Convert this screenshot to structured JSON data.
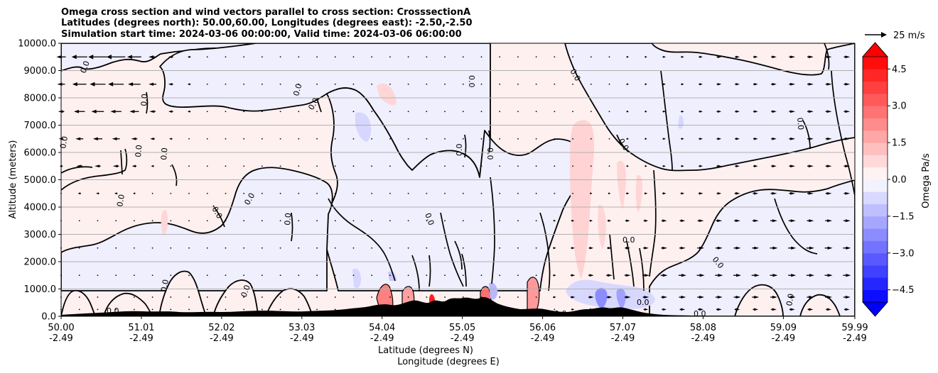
{
  "chart_data": {
    "type": "contourf",
    "title_lines": [
      "Omega cross section and wind vectors parallel to cross section: CrosssectionA",
      "Latitudes (degrees north): 50.00,60.00, Longitudes (degrees east): -2.50,-2.50",
      "Simulation start time: 2024-03-06 00:00:00, Valid time: 2024-03-06 06:00:00"
    ],
    "xlabel_line1": "Latitude (degrees N)",
    "xlabel_line2": "Longitude (degrees E)",
    "ylabel": "Altitude (meters)",
    "xlim": [
      50.0,
      59.99
    ],
    "ylim": [
      0,
      10000
    ],
    "x_ticks": [
      {
        "lat": "50.00",
        "lon": "-2.49",
        "value": 50.0
      },
      {
        "lat": "51.01",
        "lon": "-2.49",
        "value": 51.01
      },
      {
        "lat": "52.02",
        "lon": "-2.49",
        "value": 52.02
      },
      {
        "lat": "53.03",
        "lon": "-2.49",
        "value": 53.03
      },
      {
        "lat": "54.04",
        "lon": "-2.49",
        "value": 54.04
      },
      {
        "lat": "55.05",
        "lon": "-2.49",
        "value": 55.05
      },
      {
        "lat": "56.06",
        "lon": "-2.49",
        "value": 56.06
      },
      {
        "lat": "57.07",
        "lon": "-2.49",
        "value": 57.07
      },
      {
        "lat": "58.08",
        "lon": "-2.49",
        "value": 58.08
      },
      {
        "lat": "59.09",
        "lon": "-2.49",
        "value": 59.09
      },
      {
        "lat": "59.99",
        "lon": "-2.49",
        "value": 59.99
      }
    ],
    "y_ticks": [
      {
        "label": "0.0",
        "value": 0
      },
      {
        "label": "1000.0",
        "value": 1000
      },
      {
        "label": "2000.0",
        "value": 2000
      },
      {
        "label": "3000.0",
        "value": 3000
      },
      {
        "label": "4000.0",
        "value": 4000
      },
      {
        "label": "5000.0",
        "value": 5000
      },
      {
        "label": "6000.0",
        "value": 6000
      },
      {
        "label": "7000.0",
        "value": 7000
      },
      {
        "label": "8000.0",
        "value": 8000
      },
      {
        "label": "9000.0",
        "value": 9000
      },
      {
        "label": "10000.0",
        "value": 10000
      }
    ],
    "grid": "horizontal",
    "colorbar": {
      "label": "Omega Pa/s",
      "min": -5.0,
      "max": 5.0,
      "levels": 20,
      "ticks": [
        {
          "label": "4.5",
          "value": 4.5
        },
        {
          "label": "3.0",
          "value": 3.0
        },
        {
          "label": "1.5",
          "value": 1.5
        },
        {
          "label": "0.0",
          "value": 0.0
        },
        {
          "label": "−1.5",
          "value": -1.5
        },
        {
          "label": "−3.0",
          "value": -3.0
        },
        {
          "label": "−4.5",
          "value": -4.5
        }
      ],
      "colormap": "bwr",
      "extend": "both"
    },
    "quiver_key": {
      "label": "25 m/s",
      "speed": 25
    },
    "contour_level_label": "0.0",
    "wind_vectors": {
      "x_columns": [
        50.0,
        50.23,
        50.46,
        50.69,
        50.92,
        51.15,
        51.38,
        51.61,
        51.84,
        52.07,
        52.3,
        52.53,
        52.76,
        52.99,
        53.22,
        53.45,
        53.68,
        53.91,
        54.14,
        54.37,
        54.6,
        54.83,
        55.06,
        55.29,
        55.52,
        55.75,
        55.98,
        56.21,
        56.44,
        56.67,
        56.9,
        57.13,
        57.36,
        57.59,
        57.82,
        58.05,
        58.28,
        58.51,
        58.74,
        58.97,
        59.2,
        59.43,
        59.66,
        59.89
      ],
      "levels": [
        {
          "altitude": 9500,
          "u": [
            -6,
            -10,
            -12,
            -12,
            -9,
            -5,
            -3,
            -2,
            -1,
            -1,
            -1,
            -0.5,
            -0.5,
            -0.5,
            -0.5,
            -0.5,
            -0.5,
            -0.5,
            -0.5,
            -0.5,
            -0.5,
            -0.5,
            -0.5,
            -0.5,
            -0.5,
            -0.5,
            0.5,
            1,
            1,
            1,
            1,
            1.5,
            1.5,
            2,
            2,
            2.5,
            3,
            3,
            3,
            3.5,
            4,
            4,
            4,
            4
          ]
        },
        {
          "altitude": 8500,
          "u": [
            -5,
            -9,
            -10,
            -10,
            -8,
            -5,
            -3,
            -2,
            -1,
            -1,
            -1,
            -0.5,
            -0.5,
            -0.5,
            -0.5,
            -0.5,
            -0.5,
            -0.5,
            -0.5,
            -0.5,
            -0.5,
            -0.5,
            -0.5,
            -0.5,
            -0.5,
            -0.5,
            0.5,
            1,
            1,
            1,
            1,
            1.5,
            1.5,
            2,
            2,
            2.5,
            3,
            3,
            3,
            3.5,
            4,
            4,
            4,
            4
          ]
        },
        {
          "altitude": 7500,
          "u": [
            -4,
            -7,
            -8,
            -7,
            -6,
            -4,
            -3,
            -2,
            -1,
            -1,
            -1,
            -0.5,
            -0.5,
            -0.5,
            -0.5,
            -0.5,
            -0.5,
            -0.5,
            -0.5,
            -0.5,
            -0.5,
            -0.5,
            -0.5,
            -0.5,
            -0.5,
            -0.5,
            0.5,
            1,
            1,
            1,
            1,
            1.5,
            1.5,
            2,
            2,
            2.5,
            3,
            3,
            3,
            3.5,
            4,
            4,
            4,
            4
          ]
        },
        {
          "altitude": 6500,
          "u": [
            -3,
            -5,
            -6,
            -5,
            -4,
            -3,
            -2,
            -1,
            -1,
            -1,
            -1,
            -0.5,
            -0.5,
            -0.5,
            -0.5,
            -0.5,
            -0.5,
            -0.5,
            -0.5,
            -0.5,
            -0.5,
            -0.5,
            -0.5,
            -0.5,
            -0.5,
            -0.5,
            0.5,
            1,
            1,
            1,
            1,
            1.5,
            1.5,
            2,
            2,
            2.5,
            3,
            3,
            3,
            3.5,
            4,
            4,
            4,
            4
          ]
        },
        {
          "altitude": 5500,
          "u": [
            -2,
            -4,
            -4,
            -4,
            -3,
            -2,
            -1,
            -1,
            -1,
            -0.5,
            -0.5,
            -0.5,
            -0.5,
            -0.5,
            -0.5,
            -0.5,
            -0.5,
            -0.5,
            -0.5,
            -0.5,
            -0.5,
            -0.5,
            -0.5,
            -0.5,
            -0.5,
            -0.5,
            0.5,
            1,
            1,
            1,
            1,
            1.5,
            1.5,
            2,
            2,
            2.5,
            3,
            3,
            3,
            3.5,
            4,
            4,
            4,
            4
          ]
        },
        {
          "altitude": 4500,
          "u": [
            -1,
            -2,
            -2,
            -2,
            -1.5,
            -1,
            -0.5,
            -0.5,
            -0.5,
            -0.5,
            -0.5,
            -0.5,
            -0.5,
            -0.5,
            -0.5,
            -0.5,
            -0.5,
            -0.5,
            -0.5,
            -0.5,
            -0.5,
            -0.5,
            -0.5,
            -0.5,
            -0.5,
            -0.5,
            0.5,
            1,
            1,
            1.5,
            1.5,
            2,
            2,
            2.5,
            2.5,
            3,
            3,
            3.5,
            3.5,
            4,
            4,
            4,
            4,
            4
          ]
        },
        {
          "altitude": 3500,
          "u": [
            -0.5,
            -1,
            -1,
            -1,
            -0.5,
            -0.5,
            -0.5,
            -0.5,
            -0.5,
            -0.5,
            -0.5,
            -0.5,
            -0.5,
            -0.5,
            -0.5,
            -0.5,
            -0.5,
            -0.5,
            -0.5,
            -0.5,
            -0.5,
            -0.5,
            -0.5,
            -0.5,
            -0.5,
            -0.5,
            1,
            1.5,
            2,
            2,
            2.5,
            3,
            3,
            3.5,
            3.5,
            4,
            4,
            4,
            4,
            4.5,
            4.5,
            4.5,
            4.5,
            4.5
          ]
        },
        {
          "altitude": 2500,
          "u": [
            -0.5,
            -0.5,
            -0.5,
            -0.5,
            -0.5,
            -0.5,
            -0.5,
            -0.5,
            -0.5,
            -0.5,
            -0.5,
            -0.5,
            -0.5,
            -0.5,
            -0.5,
            -0.5,
            -0.5,
            -0.5,
            -0.5,
            -0.5,
            -0.5,
            -0.5,
            -0.5,
            -0.5,
            -0.5,
            -0.5,
            1,
            2,
            2.5,
            3,
            3,
            3.5,
            3.5,
            4,
            4,
            4.5,
            4.5,
            4.5,
            4.5,
            5,
            5,
            5,
            5,
            5
          ]
        },
        {
          "altitude": 1500,
          "u": [
            -0.5,
            -0.5,
            -0.5,
            -0.5,
            -0.5,
            -0.5,
            -0.5,
            -0.5,
            -0.5,
            -0.5,
            -0.5,
            -0.5,
            -0.5,
            -0.5,
            -0.5,
            -0.5,
            -0.5,
            -0.5,
            -0.5,
            -0.5,
            -0.5,
            -0.5,
            -0.5,
            -0.5,
            -0.5,
            -0.5,
            1,
            2,
            3,
            3.5,
            4,
            4,
            4.5,
            4.5,
            5,
            5,
            5,
            5,
            5,
            5,
            5,
            5,
            5,
            5
          ]
        },
        {
          "altitude": 700,
          "u": [
            -0.5,
            -0.5,
            -0.5,
            -0.5,
            -0.5,
            -0.5,
            -0.5,
            -0.5,
            -0.5,
            -0.5,
            -0.5,
            -0.5,
            -0.5,
            -0.5,
            -0.5,
            -0.5,
            -0.5,
            -0.5,
            -0.5,
            -0.5,
            -0.5,
            -0.5,
            -0.5,
            -0.5,
            -0.5,
            -0.5,
            1,
            2,
            3,
            3.5,
            3.5,
            4,
            4,
            4,
            4.5,
            4.5,
            4.5,
            4.5,
            4.5,
            4.5,
            4.5,
            4.5,
            4.5,
            4.5
          ]
        },
        {
          "altitude": 250,
          "u": [
            -0.5,
            -0.5,
            -0.5,
            -0.5,
            -0.5,
            -0.5,
            -0.5,
            -0.5,
            -0.5,
            -0.5,
            -0.5,
            -0.5,
            -0.5,
            -0.5,
            -0.5,
            -0.5,
            -0.5,
            -0.5,
            -0.5,
            -0.5,
            -0.5,
            -0.5,
            -0.5,
            -0.5,
            -0.5,
            -0.5,
            0.5,
            1,
            2,
            2.5,
            2.5,
            3,
            3,
            3,
            3.5,
            3.5,
            3.5,
            3.5,
            3.5,
            3.5,
            3.5,
            3.5,
            3.5,
            3.5
          ]
        }
      ]
    }
  }
}
